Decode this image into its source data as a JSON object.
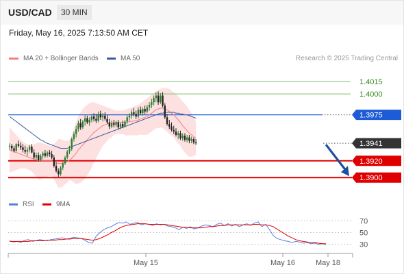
{
  "header": {
    "pair": "USD/CAD",
    "timeframe": "30 MIN",
    "datetime": "Friday, May 16, 2025 7:13:50 AM CET"
  },
  "credit": "Research © 2025 Trading Central",
  "colors": {
    "bull": "#2e7d32",
    "bear": "#222222",
    "ma20": "#f08080",
    "ma50": "#3a5a9a",
    "band": "#fde0e0",
    "resistance_line": "#7cc16a",
    "pivot": "#1e5bd6",
    "support": "#e00000",
    "last_price_tag": "#333333",
    "rsi": "#5b7fd6",
    "rsi_ma": "#e00000",
    "arrow": "#1e4f9a"
  },
  "chart_data": [
    {
      "type": "line",
      "title": "",
      "legend": [
        {
          "name": "MA 20 + Bollinger Bands",
          "color": "#f08080"
        },
        {
          "name": "MA 50",
          "color": "#3a5a9a"
        }
      ],
      "legend_position": "top-left",
      "ylim": [
        1.3883,
        1.4032
      ],
      "x_tick_labels": [
        "May 15",
        "May 16",
        "May 18"
      ],
      "levels": [
        {
          "value": "1.4015",
          "kind": "resistance"
        },
        {
          "value": "1.4000",
          "kind": "resistance"
        },
        {
          "value": "1.3975",
          "kind": "pivot"
        },
        {
          "value": "1.3941",
          "kind": "last"
        },
        {
          "value": "1.3920",
          "kind": "support"
        },
        {
          "value": "1.3900",
          "kind": "support"
        }
      ],
      "ohlc": [
        [
          1.3937,
          1.3941,
          1.3933,
          1.3938
        ],
        [
          1.3938,
          1.394,
          1.3932,
          1.3935
        ],
        [
          1.3935,
          1.3938,
          1.393,
          1.3932
        ],
        [
          1.3932,
          1.3941,
          1.3931,
          1.394
        ],
        [
          1.394,
          1.3944,
          1.3936,
          1.3938
        ],
        [
          1.3938,
          1.3942,
          1.3933,
          1.3936
        ],
        [
          1.3936,
          1.394,
          1.393,
          1.3933
        ],
        [
          1.3933,
          1.3938,
          1.3928,
          1.3931
        ],
        [
          1.3931,
          1.3936,
          1.3926,
          1.3933
        ],
        [
          1.3933,
          1.3939,
          1.393,
          1.3937
        ],
        [
          1.3937,
          1.394,
          1.3929,
          1.393
        ],
        [
          1.393,
          1.3934,
          1.3922,
          1.3924
        ],
        [
          1.3924,
          1.393,
          1.392,
          1.3927
        ],
        [
          1.3927,
          1.393,
          1.3919,
          1.3921
        ],
        [
          1.3921,
          1.3928,
          1.3919,
          1.3926
        ],
        [
          1.3926,
          1.3931,
          1.3922,
          1.3929
        ],
        [
          1.3929,
          1.3933,
          1.3924,
          1.3926
        ],
        [
          1.3926,
          1.3932,
          1.3924,
          1.393
        ],
        [
          1.393,
          1.3933,
          1.3925,
          1.3928
        ],
        [
          1.3928,
          1.3932,
          1.3922,
          1.3924
        ],
        [
          1.3924,
          1.3927,
          1.3912,
          1.3914
        ],
        [
          1.3914,
          1.3918,
          1.3906,
          1.3908
        ],
        [
          1.3908,
          1.3911,
          1.3901,
          1.3904
        ],
        [
          1.3904,
          1.3914,
          1.3902,
          1.3912
        ],
        [
          1.3912,
          1.3919,
          1.3909,
          1.3917
        ],
        [
          1.3917,
          1.3926,
          1.3915,
          1.3924
        ],
        [
          1.3924,
          1.3933,
          1.3922,
          1.3931
        ],
        [
          1.3931,
          1.3938,
          1.3928,
          1.3934
        ],
        [
          1.3934,
          1.3948,
          1.3932,
          1.3946
        ],
        [
          1.3946,
          1.3955,
          1.3943,
          1.3952
        ],
        [
          1.3952,
          1.3962,
          1.3948,
          1.3958
        ],
        [
          1.3958,
          1.3968,
          1.3955,
          1.3965
        ],
        [
          1.3965,
          1.397,
          1.3957,
          1.396
        ],
        [
          1.396,
          1.3969,
          1.3958,
          1.3967
        ],
        [
          1.3967,
          1.3975,
          1.3962,
          1.3971
        ],
        [
          1.3971,
          1.3974,
          1.3964,
          1.3966
        ],
        [
          1.3966,
          1.3972,
          1.3962,
          1.3969
        ],
        [
          1.3969,
          1.3976,
          1.3966,
          1.3973
        ],
        [
          1.3973,
          1.3977,
          1.3967,
          1.397
        ],
        [
          1.397,
          1.3976,
          1.3965,
          1.3968
        ],
        [
          1.3968,
          1.3979,
          1.3966,
          1.3976
        ],
        [
          1.3976,
          1.398,
          1.3969,
          1.3972
        ],
        [
          1.3972,
          1.3977,
          1.3967,
          1.3974
        ],
        [
          1.3974,
          1.3978,
          1.3968,
          1.397
        ],
        [
          1.397,
          1.3975,
          1.3964,
          1.3966
        ],
        [
          1.3966,
          1.397,
          1.3958,
          1.3961
        ],
        [
          1.3961,
          1.3968,
          1.3959,
          1.3965
        ],
        [
          1.3965,
          1.3969,
          1.396,
          1.3963
        ],
        [
          1.3963,
          1.3968,
          1.396,
          1.3966
        ],
        [
          1.3966,
          1.3969,
          1.3958,
          1.396
        ],
        [
          1.396,
          1.3966,
          1.3958,
          1.3964
        ],
        [
          1.3964,
          1.3968,
          1.3959,
          1.3961
        ],
        [
          1.3961,
          1.3969,
          1.396,
          1.3967
        ],
        [
          1.3967,
          1.3975,
          1.3964,
          1.3972
        ],
        [
          1.3972,
          1.3977,
          1.3968,
          1.3974
        ],
        [
          1.3974,
          1.3981,
          1.397,
          1.3978
        ],
        [
          1.3978,
          1.3983,
          1.3973,
          1.3976
        ],
        [
          1.3976,
          1.398,
          1.397,
          1.3973
        ],
        [
          1.3973,
          1.3984,
          1.3971,
          1.3981
        ],
        [
          1.3981,
          1.3985,
          1.3975,
          1.3977
        ],
        [
          1.3977,
          1.3984,
          1.3974,
          1.3982
        ],
        [
          1.3982,
          1.3986,
          1.3976,
          1.3979
        ],
        [
          1.3979,
          1.3987,
          1.3977,
          1.3984
        ],
        [
          1.3984,
          1.399,
          1.398,
          1.3987
        ],
        [
          1.3987,
          1.3994,
          1.3983,
          1.399
        ],
        [
          1.399,
          1.3998,
          1.3986,
          1.3995
        ],
        [
          1.3995,
          1.4002,
          1.399,
          1.3998
        ],
        [
          1.3998,
          1.4003,
          1.3987,
          1.399
        ],
        [
          1.399,
          1.4001,
          1.3988,
          1.3998
        ],
        [
          1.3998,
          1.4002,
          1.3984,
          1.3986
        ],
        [
          1.3986,
          1.3989,
          1.397,
          1.3972
        ],
        [
          1.3972,
          1.3976,
          1.3962,
          1.3964
        ],
        [
          1.3964,
          1.3969,
          1.3958,
          1.3961
        ],
        [
          1.3961,
          1.3966,
          1.3955,
          1.3957
        ],
        [
          1.3957,
          1.3962,
          1.3952,
          1.3955
        ],
        [
          1.3955,
          1.3959,
          1.3949,
          1.3951
        ],
        [
          1.3951,
          1.3956,
          1.3946,
          1.3953
        ],
        [
          1.3953,
          1.3956,
          1.3945,
          1.3947
        ],
        [
          1.3947,
          1.3953,
          1.3944,
          1.395
        ],
        [
          1.395,
          1.3953,
          1.3943,
          1.3945
        ],
        [
          1.3945,
          1.3951,
          1.3942,
          1.3948
        ],
        [
          1.3948,
          1.3951,
          1.3941,
          1.3944
        ],
        [
          1.3944,
          1.3949,
          1.3941,
          1.3946
        ],
        [
          1.3946,
          1.3948,
          1.394,
          1.3942
        ],
        [
          1.3942,
          1.3946,
          1.3939,
          1.3941
        ]
      ],
      "ma20": [
        1.3933,
        1.3932,
        1.3931,
        1.393,
        1.3929,
        1.3928,
        1.3927,
        1.3926,
        1.3925,
        1.3924,
        1.3923,
        1.3922,
        1.3921,
        1.392,
        1.392,
        1.392,
        1.392,
        1.392,
        1.392,
        1.392,
        1.3919,
        1.3918,
        1.3917,
        1.3917,
        1.3917,
        1.3918,
        1.3919,
        1.3921,
        1.3923,
        1.3926,
        1.3929,
        1.3933,
        1.3936,
        1.3939,
        1.3942,
        1.3945,
        1.3948,
        1.3951,
        1.3954,
        1.3956,
        1.3958,
        1.396,
        1.3962,
        1.3963,
        1.3964,
        1.3965,
        1.3965,
        1.3966,
        1.3966,
        1.3966,
        1.3966,
        1.3966,
        1.3966,
        1.3966,
        1.3967,
        1.3967,
        1.3968,
        1.3968,
        1.3969,
        1.397,
        1.3971,
        1.3972,
        1.3973,
        1.3975,
        1.3977,
        1.3979,
        1.3981,
        1.3982,
        1.3983,
        1.3983,
        1.3982,
        1.3981,
        1.3979,
        1.3977,
        1.3975,
        1.3972,
        1.3969,
        1.3966,
        1.3962,
        1.3959,
        1.3956,
        1.3953,
        1.3951,
        1.3949,
        1.3947
      ],
      "bb_upper": [
        1.396,
        1.3957,
        1.3954,
        1.3951,
        1.3948,
        1.3945,
        1.3943,
        1.3941,
        1.394,
        1.3939,
        1.3939,
        1.394,
        1.3941,
        1.3942,
        1.3942,
        1.3941,
        1.394,
        1.3939,
        1.3938,
        1.3938,
        1.394,
        1.3943,
        1.3946,
        1.3946,
        1.3945,
        1.3944,
        1.3944,
        1.3945,
        1.395,
        1.3958,
        1.3966,
        1.3973,
        1.3978,
        1.3982,
        1.3985,
        1.3987,
        1.3989,
        1.399,
        1.399,
        1.3989,
        1.3988,
        1.3987,
        1.3986,
        1.3985,
        1.3984,
        1.3983,
        1.3982,
        1.3981,
        1.398,
        1.398,
        1.398,
        1.398,
        1.3981,
        1.3982,
        1.3983,
        1.3984,
        1.3985,
        1.3986,
        1.3987,
        1.3989,
        1.3991,
        1.3993,
        1.3995,
        1.3997,
        1.3999,
        1.4001,
        1.4003,
        1.4005,
        1.4006,
        1.4007,
        1.4007,
        1.4007,
        1.4006,
        1.4004,
        1.4002,
        1.4,
        1.3997,
        1.3994,
        1.3991,
        1.3988,
        1.3985,
        1.3981,
        1.3977,
        1.3972,
        1.3967
      ],
      "bb_lower": [
        1.3906,
        1.3907,
        1.3908,
        1.3909,
        1.391,
        1.3911,
        1.3911,
        1.3911,
        1.391,
        1.3909,
        1.3907,
        1.3904,
        1.3901,
        1.3898,
        1.3898,
        1.3899,
        1.39,
        1.3901,
        1.3902,
        1.3902,
        1.3898,
        1.3893,
        1.3888,
        1.3888,
        1.3889,
        1.3892,
        1.3894,
        1.3897,
        1.3896,
        1.3894,
        1.3892,
        1.3893,
        1.3894,
        1.3896,
        1.3899,
        1.3903,
        1.3907,
        1.3912,
        1.3918,
        1.3923,
        1.3928,
        1.3933,
        1.3938,
        1.3941,
        1.3944,
        1.3947,
        1.3948,
        1.3951,
        1.3952,
        1.3952,
        1.3952,
        1.3952,
        1.3951,
        1.395,
        1.3951,
        1.395,
        1.3951,
        1.395,
        1.3951,
        1.3951,
        1.3951,
        1.3951,
        1.3951,
        1.3953,
        1.3955,
        1.3957,
        1.3959,
        1.3959,
        1.396,
        1.3959,
        1.3957,
        1.3955,
        1.3952,
        1.395,
        1.3948,
        1.3944,
        1.3941,
        1.3938,
        1.3933,
        1.393,
        1.3927,
        1.3925,
        1.3925,
        1.3926,
        1.3927
      ],
      "ma50": [
        1.3973,
        1.3971,
        1.3969,
        1.3967,
        1.3965,
        1.3963,
        1.3961,
        1.3959,
        1.3957,
        1.3955,
        1.3953,
        1.3951,
        1.3949,
        1.3947,
        1.3945,
        1.3944,
        1.3942,
        1.3941,
        1.394,
        1.3939,
        1.3938,
        1.3937,
        1.3936,
        1.3935,
        1.3935,
        1.3935,
        1.3935,
        1.3936,
        1.3937,
        1.3938,
        1.3939,
        1.394,
        1.3941,
        1.3942,
        1.3943,
        1.3944,
        1.3945,
        1.3946,
        1.3947,
        1.3948,
        1.3949,
        1.395,
        1.3951,
        1.3952,
        1.3953,
        1.3954,
        1.3955,
        1.3956,
        1.3957,
        1.3958,
        1.3959,
        1.396,
        1.3961,
        1.3962,
        1.3963,
        1.3964,
        1.3965,
        1.3966,
        1.3967,
        1.3968,
        1.3969,
        1.397,
        1.3971,
        1.3972,
        1.3973,
        1.3974,
        1.3975,
        1.3976,
        1.3977,
        1.3977,
        1.3978,
        1.3978,
        1.3978,
        1.3978,
        1.3978,
        1.3977,
        1.3977,
        1.3976,
        1.3976,
        1.3975,
        1.3975,
        1.3974,
        1.3973,
        1.3972,
        1.3971
      ],
      "projection": {
        "from": 1.3941,
        "to": 1.39
      }
    },
    {
      "type": "line",
      "title": "",
      "legend": [
        {
          "name": "RSI",
          "color": "#5b7fd6"
        },
        {
          "name": "9MA",
          "color": "#e00000"
        }
      ],
      "ylim": [
        25,
        75
      ],
      "y_tick_labels": [
        "70",
        "50",
        "30"
      ],
      "grid": "dotted",
      "rsi": [
        36,
        34,
        35,
        33,
        37,
        38,
        35,
        36,
        38,
        37,
        36,
        38,
        39,
        40,
        41,
        39,
        40,
        42,
        41,
        40,
        37,
        33,
        32,
        44,
        50,
        55,
        58,
        60,
        64,
        67,
        66,
        68,
        64,
        66,
        67,
        63,
        65,
        64,
        62,
        65,
        63,
        64,
        61,
        60,
        58,
        55,
        59,
        57,
        60,
        56,
        58,
        61,
        63,
        62,
        60,
        64,
        66,
        62,
        65,
        61,
        64,
        60,
        63,
        65,
        62,
        66,
        68,
        60,
        64,
        55,
        45,
        40,
        38,
        36,
        35,
        33,
        35,
        34,
        32,
        33,
        31,
        32,
        30,
        31,
        30
      ],
      "rsi_ma": [
        35,
        35,
        35,
        35,
        35,
        35,
        36,
        36,
        36,
        36,
        37,
        37,
        37,
        38,
        38,
        39,
        39,
        40,
        40,
        40,
        39,
        38,
        37,
        38,
        40,
        43,
        46,
        50,
        53,
        57,
        60,
        62,
        63,
        64,
        65,
        65,
        65,
        64,
        64,
        64,
        64,
        64,
        63,
        62,
        61,
        60,
        59,
        59,
        58,
        58,
        58,
        58,
        59,
        60,
        60,
        61,
        62,
        62,
        63,
        63,
        63,
        63,
        63,
        63,
        63,
        64,
        64,
        63,
        63,
        62,
        60,
        56,
        52,
        48,
        44,
        41,
        38,
        36,
        35,
        34,
        33,
        33,
        32,
        31,
        31
      ]
    }
  ]
}
